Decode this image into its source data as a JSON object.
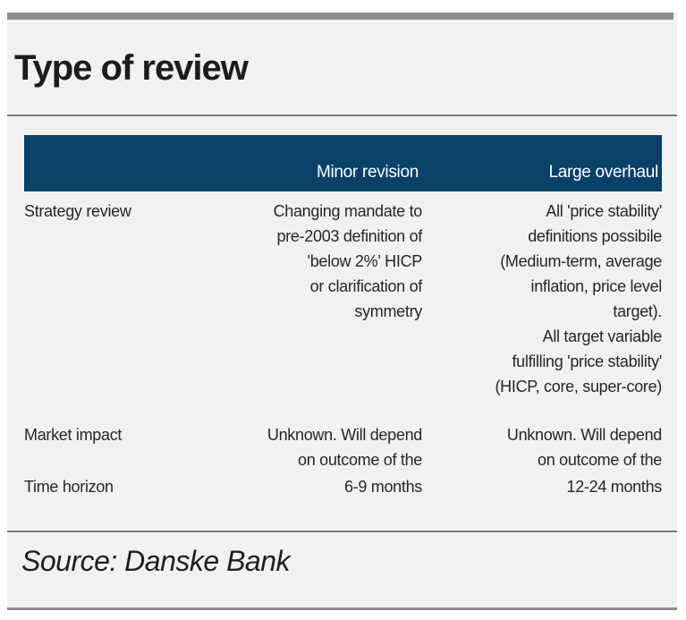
{
  "page": {
    "title": "Type of review",
    "source": "Source: Danske Bank"
  },
  "table": {
    "header": [
      "",
      "Minor revision",
      "Large overhaul"
    ],
    "rows": [
      {
        "label": "Strategy review",
        "minor": "Changing mandate to\npre-2003 definition of\n'below 2%' HICP\nor clarification of\nsymmetry",
        "large": "All 'price stability'\ndefinitions possibile\n(Medium-term, average\ninflation, price level\ntarget).\nAll target variable\nfulfilling 'price stability'\n(HICP, core, super-core)"
      },
      {
        "label": "Market impact",
        "minor": "Unknown. Will depend\non outcome of the",
        "large": "Unknown. Will depend\non outcome of the"
      },
      {
        "label": "Time horizon",
        "minor": "6-9 months",
        "large": "12-24 months"
      }
    ]
  },
  "colors": {
    "header_bg": "#0a416a",
    "header_text": "#ffffff",
    "body_text": "#262626",
    "content_bg": "#f1f1f0",
    "top_bar": "#8c8c8c",
    "divider": "#7a7a7a"
  }
}
